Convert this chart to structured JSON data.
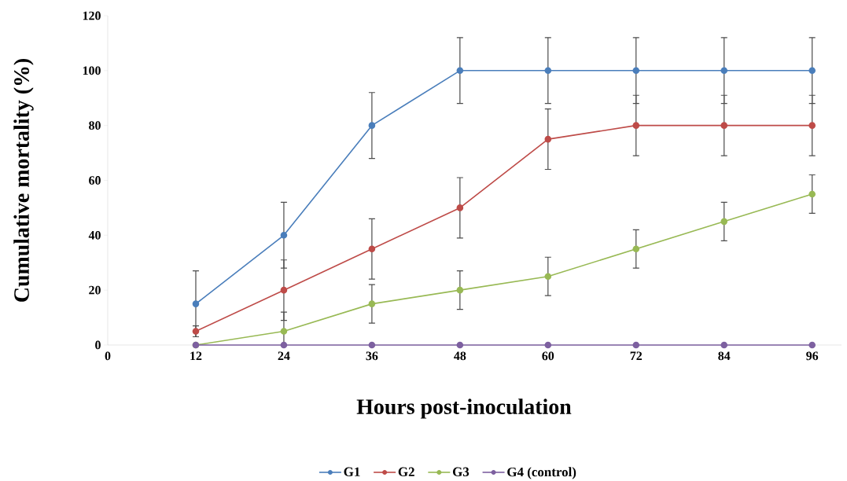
{
  "chart_data": {
    "type": "line",
    "xlabel": "Hours post-inoculation",
    "ylabel": "Cumulative mortality (%)",
    "x": [
      12,
      24,
      36,
      48,
      60,
      72,
      84,
      96
    ],
    "series": [
      {
        "name": "G1",
        "color": "#4a7ebb",
        "values": [
          15,
          40,
          80,
          100,
          100,
          100,
          100,
          100
        ],
        "errors": [
          12,
          12,
          12,
          12,
          12,
          12,
          12,
          12
        ]
      },
      {
        "name": "G2",
        "color": "#be4b48",
        "values": [
          5,
          20,
          35,
          50,
          75,
          80,
          80,
          80
        ],
        "errors": [
          2,
          11,
          11,
          11,
          11,
          11,
          11,
          11
        ]
      },
      {
        "name": "G3",
        "color": "#98b954",
        "values": [
          0,
          5,
          15,
          20,
          25,
          35,
          45,
          55
        ],
        "errors": [
          null,
          [
            0,
            12
          ],
          7,
          7,
          7,
          7,
          7,
          7
        ]
      },
      {
        "name": "G4 (control)",
        "color": "#7d60a0",
        "values": [
          0,
          0,
          0,
          0,
          0,
          0,
          0,
          0
        ]
      }
    ],
    "xlim": [
      0,
      100
    ],
    "xticks": [
      0,
      12,
      24,
      36,
      48,
      60,
      72,
      84,
      96
    ],
    "ylim": [
      0,
      120
    ],
    "yticks": [
      0,
      20,
      40,
      60,
      80,
      100,
      120
    ],
    "legend": "bottom",
    "marker": "circle",
    "line_style": "solid",
    "grid": false
  }
}
